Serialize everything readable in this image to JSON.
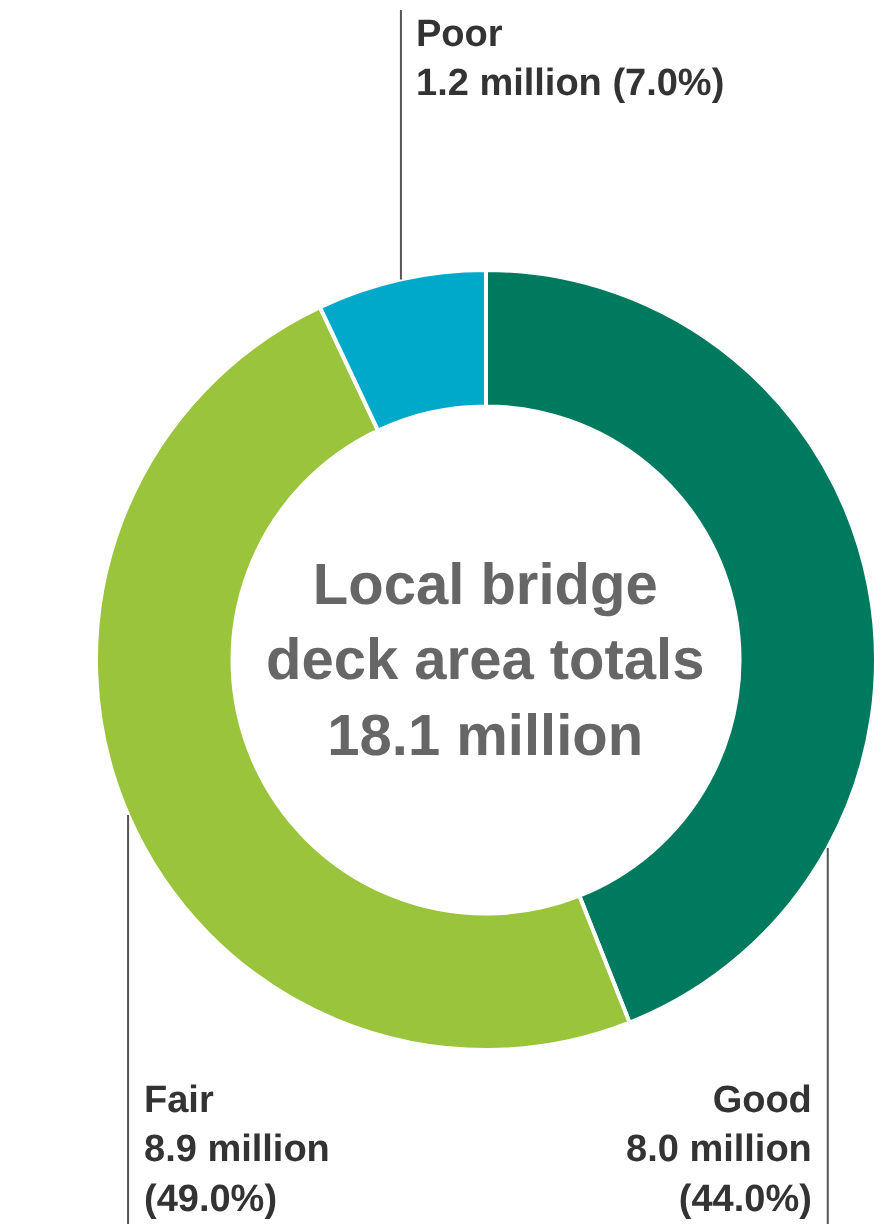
{
  "chart_data": {
    "type": "donut",
    "categories": [
      "Good",
      "Fair",
      "Poor"
    ],
    "values": [
      44.0,
      49.0,
      7.0
    ],
    "colors": [
      "#007a5e",
      "#99c43c",
      "#00a9c9"
    ],
    "value_labels": [
      "8.0 million\n(44.0%)",
      "8.9 million\n(49.0%)",
      "1.2 million (7.0%)"
    ],
    "annotations": [
      "Local bridge\ndeck area totals\n18.1 million"
    ],
    "legend": false
  }
}
